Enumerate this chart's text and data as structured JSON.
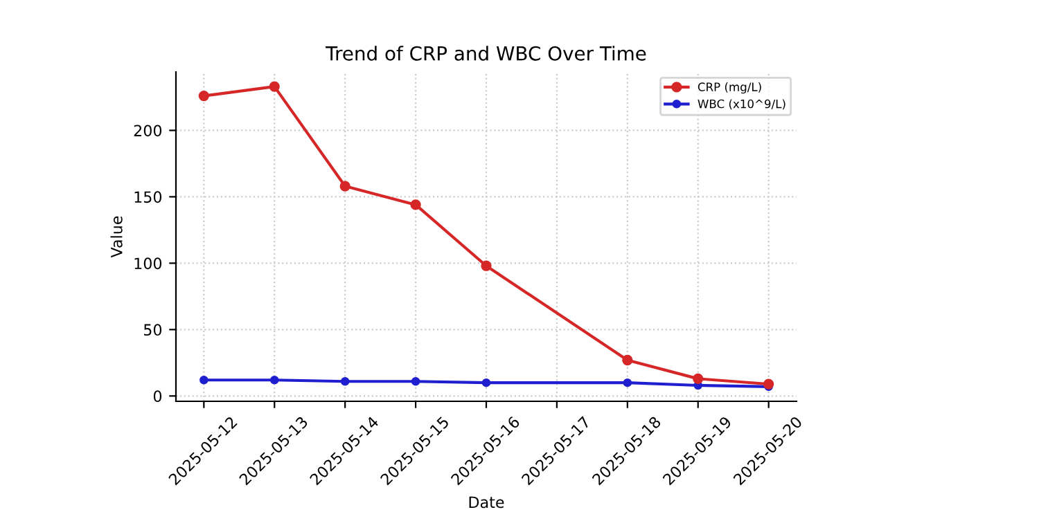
{
  "chart_data": {
    "type": "line",
    "title": "Trend of CRP and WBC Over Time",
    "xlabel": "Date",
    "ylabel": "Value",
    "x": [
      "2025-05-12",
      "2025-05-13",
      "2025-05-14",
      "2025-05-15",
      "2025-05-16",
      "2025-05-18",
      "2025-05-19",
      "2025-05-20"
    ],
    "series": [
      {
        "name": "CRP (mg/L)",
        "color": "#d62728",
        "values": [
          226,
          233,
          158,
          144,
          98,
          27,
          13,
          9
        ]
      },
      {
        "name": "WBC (x10^9/L)",
        "color": "#1f1fcf",
        "values": [
          12,
          12,
          11,
          11,
          10,
          10,
          8,
          7
        ]
      }
    ],
    "xlim": [
      "2025-05-11T14:30",
      "2025-05-20T09:30"
    ],
    "xticks": [
      "2025-05-12",
      "2025-05-13",
      "2025-05-14",
      "2025-05-15",
      "2025-05-16",
      "2025-05-17",
      "2025-05-18",
      "2025-05-19",
      "2025-05-20"
    ],
    "ylim": [
      -4,
      244
    ],
    "yticks": [
      0,
      50,
      100,
      150,
      200
    ],
    "grid": true,
    "legend": "top right",
    "marker": "circle",
    "line_style": "solid"
  }
}
